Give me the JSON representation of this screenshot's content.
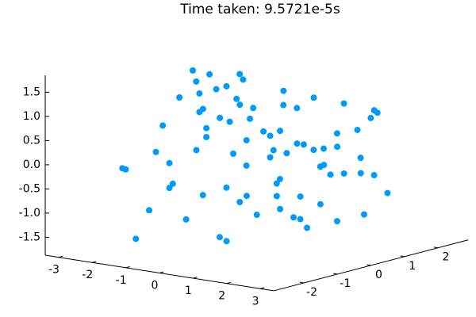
{
  "chart_data": {
    "type": "scatter3d",
    "title": "Time taken: 9.5721e-5s",
    "color": "#009af9",
    "x": [
      -2.9,
      -2.7,
      -2.5,
      -2.4,
      -2.2,
      -2.0,
      -1.9,
      -1.8,
      -1.6,
      -1.5,
      -1.4,
      -1.3,
      -1.2,
      -1.1,
      -1.0,
      -0.9,
      -0.8,
      -0.7,
      -0.6,
      -0.5,
      -0.4,
      -0.3,
      -0.2,
      -0.1,
      0.0,
      0.1,
      0.2,
      0.3,
      0.4,
      0.5,
      0.6,
      0.7,
      0.8,
      0.9,
      1.0,
      1.1,
      1.2,
      1.3,
      1.4,
      1.5,
      1.6,
      1.7,
      1.8,
      1.9,
      2.0,
      2.1,
      2.2,
      2.3,
      2.5,
      2.7,
      -2.6,
      -2.1,
      -1.7,
      -1.3,
      -0.9,
      -0.5,
      -0.1,
      0.3,
      0.7,
      1.1,
      1.5,
      1.9,
      2.3,
      2.8,
      -2.3,
      -1.5,
      -0.7,
      0.1,
      0.9,
      1.7,
      2.4,
      -1.9,
      -1.1,
      -0.3,
      0.5,
      1.3,
      2.1,
      -0.8,
      0.6,
      1.2
    ],
    "y": [
      1.2,
      -0.5,
      0.8,
      -1.6,
      0.3,
      1.7,
      -1.1,
      0.6,
      -2.0,
      1.4,
      -0.2,
      0.9,
      -1.4,
      2.0,
      -0.8,
      0.4,
      1.6,
      -1.8,
      0.1,
      -0.6,
      1.1,
      -1.3,
      2.1,
      -0.1,
      0.7,
      -1.9,
      1.5,
      -0.9,
      0.2,
      1.9,
      -1.5,
      0.5,
      -0.4,
      1.3,
      -2.1,
      0.8,
      -0.7,
      1.8,
      -1.2,
      0.0,
      1.0,
      -1.7,
      0.6,
      2.0,
      -0.3,
      1.4,
      -1.0,
      0.9,
      -0.5,
      0.3,
      -1.3,
      1.6,
      -0.4,
      0.5,
      -1.9,
      1.1,
      -0.8,
      1.7,
      -1.4,
      0.2,
      2.1,
      -0.6,
      1.2,
      -0.2,
      0.9,
      -1.1,
      0.4,
      -1.6,
      1.5,
      -0.3,
      0.7,
      -0.4,
      1.8,
      -1.2,
      0.6,
      -0.9,
      1.3,
      -0.1,
      0.2,
      -1.5
    ],
    "z": [
      0.4,
      -1.3,
      0.9,
      -0.2,
      1.5,
      -0.7,
      0.1,
      1.1,
      -1.5,
      0.6,
      -0.9,
      1.3,
      0.0,
      -0.4,
      1.6,
      -1.1,
      0.7,
      -0.3,
      1.0,
      -1.6,
      0.3,
      1.2,
      -0.6,
      0.8,
      -1.2,
      0.5,
      -0.1,
      1.4,
      -0.8,
      0.2,
      -1.4,
      1.0,
      0.6,
      -0.5,
      1.3,
      -1.0,
      0.4,
      -0.2,
      0.9,
      -1.3,
      1.1,
      -0.7,
      0.3,
      -0.9,
      1.5,
      -0.4,
      0.7,
      -1.1,
      0.2,
      0.8,
      -0.3,
      1.2,
      -1.4,
      0.5,
      0.9,
      -0.8,
      1.6,
      -0.1,
      0.4,
      -1.2,
      0.7,
      -0.5,
      1.0,
      0.0,
      1.3,
      -0.6,
      0.2,
      0.9,
      -1.5,
      0.5,
      -0.2,
      1.1,
      -0.9,
      0.6,
      -1.3,
      0.3,
      0.8,
      -0.7,
      1.4,
      -0.4
    ],
    "xlim": [
      -3.4,
      3.4
    ],
    "ylim": [
      -2.9,
      2.9
    ],
    "zlim": [
      -1.87,
      1.85
    ],
    "xticks": [
      -3,
      -2,
      -1,
      0,
      1,
      2,
      3
    ],
    "yticks": [
      -2,
      -1,
      0,
      1,
      2
    ],
    "zticks": [
      -1.5,
      {
        "value": -1,
        "label": "-1.0"
      },
      -0.5,
      {
        "value": 0,
        "label": "0.0"
      },
      0.5,
      {
        "value": 1,
        "label": "1.0"
      },
      1.5
    ]
  }
}
